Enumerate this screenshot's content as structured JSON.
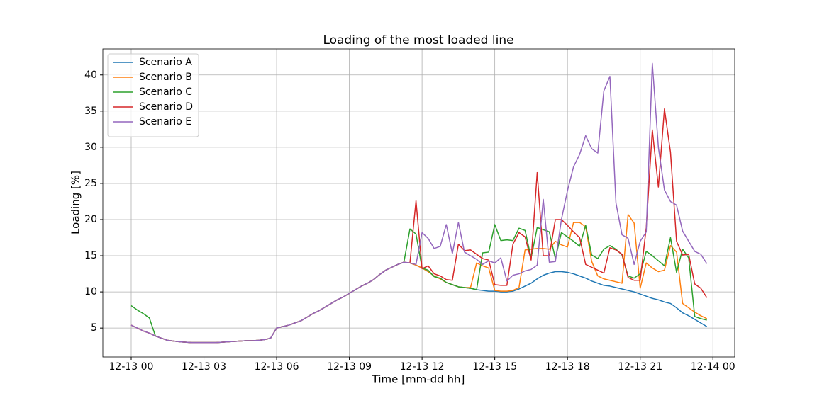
{
  "chart_data": {
    "type": "line",
    "title": "Loading of the most loaded line",
    "xlabel": "Time [mm-dd hh]",
    "ylabel": "Loading [%]",
    "x": [
      0,
      0.25,
      0.5,
      0.75,
      1,
      1.25,
      1.5,
      1.75,
      2,
      2.25,
      2.5,
      2.75,
      3,
      3.25,
      3.5,
      3.75,
      4,
      4.25,
      4.5,
      4.75,
      5,
      5.25,
      5.5,
      5.75,
      6,
      6.25,
      6.5,
      6.75,
      7,
      7.25,
      7.5,
      7.75,
      8,
      8.25,
      8.5,
      8.75,
      9,
      9.25,
      9.5,
      9.75,
      10,
      10.25,
      10.5,
      10.75,
      11,
      11.25,
      11.5,
      11.75,
      12,
      12.25,
      12.5,
      12.75,
      13,
      13.25,
      13.5,
      13.75,
      14,
      14.25,
      14.5,
      14.75,
      15,
      15.25,
      15.5,
      15.75,
      16,
      16.25,
      16.5,
      16.75,
      17,
      17.25,
      17.5,
      17.75,
      18,
      18.25,
      18.5,
      18.75,
      19,
      19.25,
      19.5,
      19.75,
      20,
      20.25,
      20.5,
      20.75,
      21,
      21.25,
      21.5,
      21.75,
      22,
      22.25,
      22.5,
      22.75,
      23,
      23.25,
      23.5,
      23.75
    ],
    "series": [
      {
        "name": "Scenario A",
        "color": "#1f77b4",
        "values": [
          5.4,
          5.0,
          4.6,
          4.3,
          3.9,
          3.6,
          3.3,
          3.2,
          3.1,
          3.05,
          3.0,
          3.0,
          3.0,
          3.0,
          3.0,
          3.05,
          3.1,
          3.15,
          3.2,
          3.25,
          3.25,
          3.3,
          3.4,
          3.6,
          5.0,
          5.2,
          5.4,
          5.7,
          6.0,
          6.5,
          7.0,
          7.4,
          7.9,
          8.4,
          8.9,
          9.3,
          9.8,
          10.3,
          10.8,
          11.2,
          11.7,
          12.4,
          13.0,
          13.4,
          13.8,
          14.1,
          14.0,
          13.7,
          13.3,
          12.8,
          12.2,
          11.8,
          11.3,
          11.0,
          10.7,
          10.6,
          10.5,
          10.3,
          10.2,
          10.1,
          10.1,
          10.0,
          10.0,
          10.1,
          10.4,
          10.8,
          11.2,
          11.8,
          12.3,
          12.6,
          12.8,
          12.8,
          12.7,
          12.5,
          12.2,
          11.9,
          11.5,
          11.2,
          10.9,
          10.8,
          10.6,
          10.4,
          10.2,
          10.0,
          9.7,
          9.4,
          9.1,
          8.9,
          8.6,
          8.4,
          7.8,
          7.1,
          6.7,
          6.2,
          5.7,
          5.2
        ]
      },
      {
        "name": "Scenario B",
        "color": "#ff7f0e",
        "values": [
          5.4,
          5.0,
          4.6,
          4.3,
          3.9,
          3.6,
          3.3,
          3.2,
          3.1,
          3.05,
          3.0,
          3.0,
          3.0,
          3.0,
          3.0,
          3.05,
          3.1,
          3.15,
          3.2,
          3.25,
          3.25,
          3.3,
          3.4,
          3.6,
          5.0,
          5.2,
          5.4,
          5.7,
          6.0,
          6.5,
          7.0,
          7.4,
          7.9,
          8.4,
          8.9,
          9.3,
          9.8,
          10.3,
          10.8,
          11.2,
          11.7,
          12.4,
          13.0,
          13.4,
          13.8,
          14.1,
          14.0,
          13.7,
          13.3,
          12.8,
          12.2,
          11.8,
          11.3,
          11.0,
          10.7,
          10.6,
          10.6,
          14.0,
          13.6,
          13.3,
          10.2,
          10.1,
          10.1,
          10.2,
          10.6,
          15.8,
          15.9,
          16.0,
          16.0,
          15.9,
          17.0,
          16.5,
          16.2,
          19.6,
          19.6,
          19.0,
          14.2,
          12.2,
          11.8,
          11.6,
          11.4,
          11.2,
          20.7,
          19.5,
          10.5,
          14.0,
          13.3,
          12.8,
          13.0,
          16.4,
          15.5,
          8.4,
          7.8,
          7.2,
          6.7,
          6.3
        ]
      },
      {
        "name": "Scenario C",
        "color": "#2ca02c",
        "values": [
          8.1,
          7.5,
          7.0,
          6.4,
          3.9,
          3.6,
          3.3,
          3.2,
          3.1,
          3.05,
          3.0,
          3.0,
          3.0,
          3.0,
          3.0,
          3.05,
          3.1,
          3.15,
          3.2,
          3.25,
          3.25,
          3.3,
          3.4,
          3.6,
          5.0,
          5.2,
          5.4,
          5.7,
          6.0,
          6.5,
          7.0,
          7.4,
          7.9,
          8.4,
          8.9,
          9.3,
          9.8,
          10.3,
          10.8,
          11.2,
          11.7,
          12.4,
          13.0,
          13.4,
          13.8,
          14.1,
          18.7,
          18.0,
          13.3,
          13.0,
          12.1,
          11.9,
          11.3,
          11.0,
          10.7,
          10.6,
          10.5,
          10.3,
          15.4,
          15.5,
          19.3,
          17.1,
          17.2,
          17.1,
          18.8,
          18.5,
          14.7,
          18.9,
          18.6,
          18.3,
          14.6,
          18.2,
          17.6,
          17.0,
          16.3,
          19.2,
          15.1,
          14.6,
          15.9,
          16.4,
          15.9,
          15.1,
          12.2,
          11.9,
          12.5,
          15.6,
          15.0,
          14.3,
          13.6,
          17.5,
          12.7,
          15.9,
          14.7,
          6.6,
          6.3,
          6.1
        ]
      },
      {
        "name": "Scenario D",
        "color": "#d62728",
        "values": [
          5.4,
          5.0,
          4.6,
          4.3,
          3.9,
          3.6,
          3.3,
          3.2,
          3.1,
          3.05,
          3.0,
          3.0,
          3.0,
          3.0,
          3.0,
          3.05,
          3.1,
          3.15,
          3.2,
          3.25,
          3.25,
          3.3,
          3.4,
          3.6,
          5.0,
          5.2,
          5.4,
          5.7,
          6.0,
          6.5,
          7.0,
          7.4,
          7.9,
          8.4,
          8.9,
          9.3,
          9.8,
          10.3,
          10.8,
          11.2,
          11.7,
          12.4,
          13.0,
          13.4,
          13.8,
          14.1,
          14.0,
          22.6,
          13.2,
          13.6,
          12.5,
          12.2,
          11.7,
          11.6,
          16.6,
          15.7,
          15.8,
          15.2,
          14.6,
          14.4,
          11.0,
          10.9,
          10.9,
          16.6,
          18.2,
          17.6,
          14.4,
          26.5,
          15.0,
          15.0,
          20.0,
          20.0,
          19.2,
          18.3,
          17.5,
          13.8,
          13.4,
          13.0,
          12.6,
          16.1,
          15.8,
          15.2,
          12.0,
          11.6,
          11.6,
          18.9,
          32.4,
          24.5,
          35.3,
          29.3,
          17.0,
          15.1,
          15.2,
          11.1,
          10.5,
          9.2
        ]
      },
      {
        "name": "Scenario E",
        "color": "#9467bd",
        "values": [
          5.4,
          5.0,
          4.6,
          4.3,
          3.9,
          3.6,
          3.3,
          3.2,
          3.1,
          3.05,
          3.0,
          3.0,
          3.0,
          3.0,
          3.0,
          3.05,
          3.1,
          3.15,
          3.2,
          3.25,
          3.25,
          3.3,
          3.4,
          3.6,
          5.0,
          5.2,
          5.4,
          5.7,
          6.0,
          6.5,
          7.0,
          7.4,
          7.9,
          8.4,
          8.9,
          9.3,
          9.8,
          10.3,
          10.8,
          11.2,
          11.7,
          12.4,
          13.0,
          13.4,
          13.8,
          14.1,
          14.0,
          13.8,
          18.2,
          17.4,
          16.0,
          16.3,
          19.3,
          15.3,
          19.6,
          15.5,
          15.0,
          14.5,
          13.8,
          14.3,
          14.0,
          14.7,
          11.5,
          12.3,
          12.5,
          12.9,
          13.1,
          13.7,
          22.8,
          14.1,
          14.2,
          20.0,
          24.0,
          27.3,
          29.0,
          31.6,
          29.8,
          29.2,
          37.8,
          39.8,
          22.3,
          17.9,
          17.4,
          13.8,
          17.0,
          18.3,
          41.6,
          30.0,
          24.1,
          22.5,
          22.0,
          18.4,
          17.0,
          15.6,
          15.2,
          13.9
        ]
      }
    ],
    "xlim": [
      -1.17,
      24.9
    ],
    "xticks": [
      {
        "value": 0,
        "label": "12-13 00"
      },
      {
        "value": 3,
        "label": "12-13 03"
      },
      {
        "value": 6,
        "label": "12-13 06"
      },
      {
        "value": 9,
        "label": "12-13 09"
      },
      {
        "value": 12,
        "label": "12-13 12"
      },
      {
        "value": 15,
        "label": "12-13 15"
      },
      {
        "value": 18,
        "label": "12-13 18"
      },
      {
        "value": 21,
        "label": "12-13 21"
      },
      {
        "value": 24,
        "label": "12-14 00"
      }
    ],
    "ylim": [
      1,
      43.6
    ],
    "yticks": [
      5,
      10,
      15,
      20,
      25,
      30,
      35,
      40
    ],
    "grid": true,
    "legend": "upper left"
  }
}
